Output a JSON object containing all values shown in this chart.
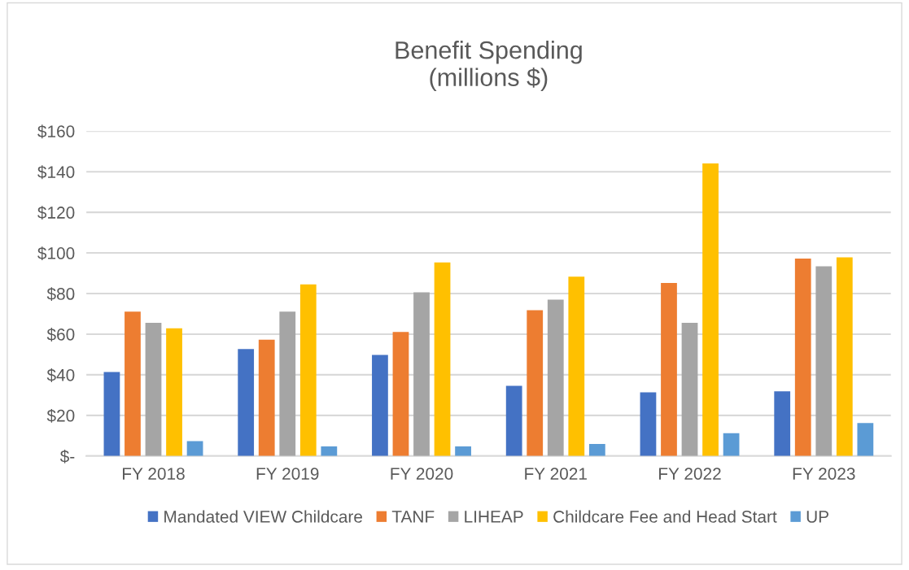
{
  "chart_data": {
    "type": "bar",
    "title": "Benefit Spending\n(millions $)",
    "categories": [
      "FY 2018",
      "FY 2019",
      "FY 2020",
      "FY 2021",
      "FY 2022",
      "FY 2023"
    ],
    "series": [
      {
        "name": "Mandated VIEW Childcare",
        "color": "#4472c4",
        "values": [
          41.4,
          52.7,
          49.8,
          34.6,
          31.4,
          31.9
        ]
      },
      {
        "name": "TANF",
        "color": "#ed7d31",
        "values": [
          71.1,
          57.3,
          61.1,
          71.8,
          85.2,
          97.2
        ]
      },
      {
        "name": "LIHEAP",
        "color": "#a5a5a5",
        "values": [
          65.6,
          71.1,
          80.6,
          77.0,
          65.6,
          93.4
        ]
      },
      {
        "name": "Childcare Fee and Head Start",
        "color": "#ffc000",
        "values": [
          62.9,
          84.5,
          95.3,
          88.3,
          144.1,
          97.8
        ]
      },
      {
        "name": "UP",
        "color": "#5b9bd5",
        "values": [
          7.3,
          4.7,
          4.7,
          5.9,
          11.2,
          16.2
        ]
      }
    ],
    "ylim": [
      0,
      160
    ],
    "yticks": [
      {
        "value": 0,
        "label": "$-"
      },
      {
        "value": 20,
        "label": "$20"
      },
      {
        "value": 40,
        "label": "$40"
      },
      {
        "value": 60,
        "label": "$60"
      },
      {
        "value": 80,
        "label": "$80"
      },
      {
        "value": 100,
        "label": "$100"
      },
      {
        "value": 120,
        "label": "$120"
      },
      {
        "value": 140,
        "label": "$140"
      },
      {
        "value": 160,
        "label": "$160"
      }
    ],
    "grid": "y",
    "legend": "bottom"
  }
}
